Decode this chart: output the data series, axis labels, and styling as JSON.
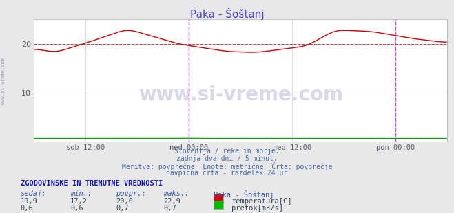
{
  "title": "Paka - Šoštanj",
  "title_color": "#4444cc",
  "bg_color": "#e8e8e8",
  "plot_bg_color": "#ffffff",
  "grid_color": "#ccccdd",
  "temp_color": "#cc0000",
  "flow_color": "#00aa00",
  "avg_line_color": "#cc0000",
  "vline_color": "#cc44cc",
  "xlim": [
    0,
    576
  ],
  "ylim": [
    0,
    25
  ],
  "yticks": [
    10,
    20
  ],
  "xtick_positions": [
    72,
    216,
    360,
    504
  ],
  "xtick_labels": [
    "sob 12:00",
    "ned 00:00",
    "ned 12:00",
    "pon 00:00"
  ],
  "vline_positions": [
    216,
    504
  ],
  "avg_line_y": 20.0,
  "watermark": "www.si-vreme.com",
  "watermark_color": "#aaaacc",
  "sidebar_text": "www.si-vreme.com",
  "subtitle_lines": [
    "Slovenija / reke in morje.",
    "zadnja dva dni / 5 minut.",
    "Meritve: povprečne  Enote: metrične  Črta: povprečje",
    "navpična črta - razdelek 24 ur"
  ],
  "table_header": "ZGODOVINSKE IN TRENUTNE VREDNOSTI",
  "table_col_headers": [
    "sedaj:",
    "min.:",
    "povpr.:",
    "maks.:",
    "Paka - Šoštanj"
  ],
  "temp_row": [
    "19,9",
    "17,2",
    "20,0",
    "22,9"
  ],
  "flow_row": [
    "0,6",
    "0,6",
    "0,7",
    "0,7"
  ],
  "temp_label": "temperatura[C]",
  "flow_label": "pretok[m3/s]",
  "temp_swatch": "#dd0000",
  "flow_swatch": "#00bb00"
}
